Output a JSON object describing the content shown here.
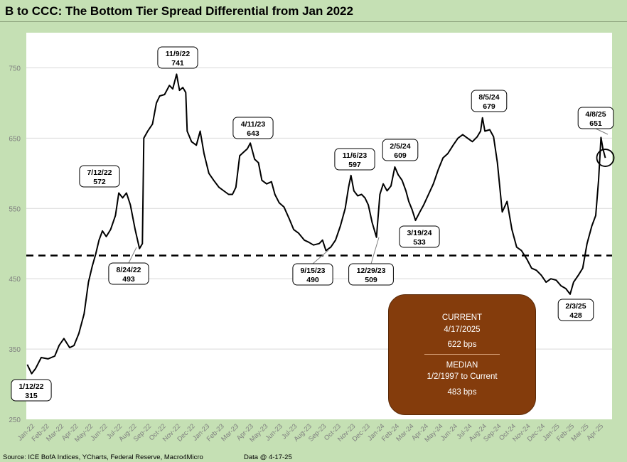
{
  "header": {
    "title": "B to CCC: The Bottom Tier Spread Differential from Jan 2022"
  },
  "footer": {
    "source": "Source: ICE BofA Indices, YCharts, Federal Reserve, Macro4Micro",
    "data_as_of": "Data @ 4-17-25"
  },
  "info_box": {
    "current_label": "CURRENT",
    "current_date": "4/17/2025",
    "current_value": "622 bps",
    "median_label": "MEDIAN",
    "median_range": "1/2/1997 to Current",
    "median_value": "483 bps"
  },
  "colors": {
    "background": "#c5e0b4",
    "line": "#000000",
    "box_fill": "#843c0c",
    "axis_text": "#7f7f7f"
  },
  "chart_data": {
    "type": "line",
    "title": "B to CCC: The Bottom Tier Spread Differential from Jan 2022",
    "xlabel": "",
    "ylabel": "",
    "ylim": [
      250,
      800
    ],
    "yticks": [
      250,
      350,
      450,
      550,
      650,
      750
    ],
    "x_tick_labels": [
      "Jan-22",
      "Feb-22",
      "Mar-22",
      "Apr-22",
      "May-22",
      "Jun-22",
      "Jul-22",
      "Aug-22",
      "Sep-22",
      "Oct-22",
      "Nov-22",
      "Dec-22",
      "Jan-23",
      "Feb-23",
      "Mar-23",
      "Apr-23",
      "May-23",
      "Jun-23",
      "Jul-23",
      "Aug-23",
      "Sep-23",
      "Oct-23",
      "Nov-23",
      "Dec-23",
      "Jan-24",
      "Feb-24",
      "Mar-24",
      "Apr-24",
      "May-24",
      "Jun-24",
      "Jul-24",
      "Aug-24",
      "Sep-24",
      "Oct-24",
      "Nov-24",
      "Dec-24",
      "Jan-25",
      "Feb-25",
      "Mar-25",
      "Apr-25"
    ],
    "grid": true,
    "median_line": 483,
    "series": [
      {
        "values": [
          [
            "2022-01-03",
            328
          ],
          [
            "2022-01-12",
            315
          ],
          [
            "2022-01-20",
            322
          ],
          [
            "2022-02-01",
            338
          ],
          [
            "2022-02-15",
            336
          ],
          [
            "2022-03-01",
            340
          ],
          [
            "2022-03-10",
            355
          ],
          [
            "2022-03-20",
            365
          ],
          [
            "2022-04-01",
            352
          ],
          [
            "2022-04-10",
            355
          ],
          [
            "2022-04-20",
            372
          ],
          [
            "2022-05-01",
            400
          ],
          [
            "2022-05-10",
            445
          ],
          [
            "2022-05-18",
            468
          ],
          [
            "2022-05-25",
            485
          ],
          [
            "2022-06-01",
            505
          ],
          [
            "2022-06-08",
            518
          ],
          [
            "2022-06-16",
            510
          ],
          [
            "2022-06-25",
            520
          ],
          [
            "2022-07-05",
            540
          ],
          [
            "2022-07-12",
            572
          ],
          [
            "2022-07-20",
            565
          ],
          [
            "2022-07-28",
            572
          ],
          [
            "2022-08-05",
            555
          ],
          [
            "2022-08-15",
            520
          ],
          [
            "2022-08-24",
            493
          ],
          [
            "2022-08-30",
            500
          ],
          [
            "2022-09-02",
            650
          ],
          [
            "2022-09-10",
            660
          ],
          [
            "2022-09-20",
            670
          ],
          [
            "2022-09-28",
            700
          ],
          [
            "2022-10-05",
            710
          ],
          [
            "2022-10-15",
            712
          ],
          [
            "2022-10-25",
            725
          ],
          [
            "2022-11-01",
            720
          ],
          [
            "2022-11-09",
            741
          ],
          [
            "2022-11-15",
            718
          ],
          [
            "2022-11-22",
            722
          ],
          [
            "2022-11-28",
            715
          ],
          [
            "2022-12-01",
            660
          ],
          [
            "2022-12-10",
            645
          ],
          [
            "2022-12-20",
            640
          ],
          [
            "2022-12-28",
            660
          ],
          [
            "2023-01-05",
            628
          ],
          [
            "2023-01-15",
            600
          ],
          [
            "2023-01-25",
            590
          ],
          [
            "2023-02-05",
            580
          ],
          [
            "2023-02-15",
            575
          ],
          [
            "2023-02-25",
            570
          ],
          [
            "2023-03-05",
            570
          ],
          [
            "2023-03-12",
            580
          ],
          [
            "2023-03-20",
            625
          ],
          [
            "2023-03-28",
            630
          ],
          [
            "2023-04-05",
            635
          ],
          [
            "2023-04-11",
            643
          ],
          [
            "2023-04-20",
            620
          ],
          [
            "2023-04-28",
            615
          ],
          [
            "2023-05-05",
            590
          ],
          [
            "2023-05-15",
            585
          ],
          [
            "2023-05-25",
            588
          ],
          [
            "2023-06-01",
            570
          ],
          [
            "2023-06-10",
            558
          ],
          [
            "2023-06-20",
            552
          ],
          [
            "2023-07-01",
            535
          ],
          [
            "2023-07-10",
            520
          ],
          [
            "2023-07-20",
            515
          ],
          [
            "2023-08-01",
            505
          ],
          [
            "2023-08-10",
            502
          ],
          [
            "2023-08-20",
            498
          ],
          [
            "2023-09-01",
            500
          ],
          [
            "2023-09-08",
            505
          ],
          [
            "2023-09-15",
            490
          ],
          [
            "2023-09-25",
            495
          ],
          [
            "2023-10-05",
            505
          ],
          [
            "2023-10-15",
            525
          ],
          [
            "2023-10-25",
            550
          ],
          [
            "2023-11-01",
            580
          ],
          [
            "2023-11-06",
            597
          ],
          [
            "2023-11-12",
            575
          ],
          [
            "2023-11-20",
            568
          ],
          [
            "2023-11-28",
            570
          ],
          [
            "2023-12-05",
            565
          ],
          [
            "2023-12-12",
            555
          ],
          [
            "2023-12-20",
            530
          ],
          [
            "2023-12-29",
            509
          ],
          [
            "2024-01-05",
            570
          ],
          [
            "2024-01-12",
            585
          ],
          [
            "2024-01-20",
            575
          ],
          [
            "2024-01-28",
            582
          ],
          [
            "2024-02-05",
            609
          ],
          [
            "2024-02-12",
            598
          ],
          [
            "2024-02-20",
            590
          ],
          [
            "2024-02-28",
            575
          ],
          [
            "2024-03-05",
            560
          ],
          [
            "2024-03-12",
            548
          ],
          [
            "2024-03-19",
            533
          ],
          [
            "2024-03-28",
            545
          ],
          [
            "2024-04-05",
            555
          ],
          [
            "2024-04-15",
            570
          ],
          [
            "2024-04-25",
            585
          ],
          [
            "2024-05-05",
            605
          ],
          [
            "2024-05-15",
            622
          ],
          [
            "2024-05-25",
            628
          ],
          [
            "2024-06-05",
            640
          ],
          [
            "2024-06-15",
            650
          ],
          [
            "2024-06-25",
            655
          ],
          [
            "2024-07-05",
            650
          ],
          [
            "2024-07-15",
            645
          ],
          [
            "2024-07-25",
            652
          ],
          [
            "2024-08-01",
            660
          ],
          [
            "2024-08-05",
            679
          ],
          [
            "2024-08-10",
            660
          ],
          [
            "2024-08-20",
            662
          ],
          [
            "2024-08-28",
            652
          ],
          [
            "2024-09-05",
            615
          ],
          [
            "2024-09-15",
            545
          ],
          [
            "2024-09-25",
            560
          ],
          [
            "2024-10-05",
            520
          ],
          [
            "2024-10-15",
            495
          ],
          [
            "2024-10-25",
            490
          ],
          [
            "2024-11-05",
            478
          ],
          [
            "2024-11-15",
            465
          ],
          [
            "2024-11-25",
            462
          ],
          [
            "2024-12-05",
            455
          ],
          [
            "2024-12-15",
            445
          ],
          [
            "2024-12-25",
            450
          ],
          [
            "2025-01-05",
            448
          ],
          [
            "2025-01-15",
            440
          ],
          [
            "2025-01-25",
            436
          ],
          [
            "2025-02-03",
            428
          ],
          [
            "2025-02-10",
            445
          ],
          [
            "2025-02-20",
            455
          ],
          [
            "2025-03-01",
            465
          ],
          [
            "2025-03-10",
            500
          ],
          [
            "2025-03-20",
            525
          ],
          [
            "2025-03-28",
            540
          ],
          [
            "2025-04-03",
            590
          ],
          [
            "2025-04-08",
            651
          ],
          [
            "2025-04-12",
            635
          ],
          [
            "2025-04-17",
            622
          ]
        ]
      }
    ],
    "annotations": [
      {
        "date": "1/12/22",
        "value": "315"
      },
      {
        "date": "7/12/22",
        "value": "572"
      },
      {
        "date": "8/24/22",
        "value": "493"
      },
      {
        "date": "11/9/22",
        "value": "741"
      },
      {
        "date": "4/11/23",
        "value": "643"
      },
      {
        "date": "9/15/23",
        "value": "490"
      },
      {
        "date": "11/6/23",
        "value": "597"
      },
      {
        "date": "12/29/23",
        "value": "509"
      },
      {
        "date": "2/5/24",
        "value": "609"
      },
      {
        "date": "3/19/24",
        "value": "533"
      },
      {
        "date": "8/5/24",
        "value": "679"
      },
      {
        "date": "2/3/25",
        "value": "428"
      },
      {
        "date": "4/8/25",
        "value": "651"
      }
    ]
  }
}
